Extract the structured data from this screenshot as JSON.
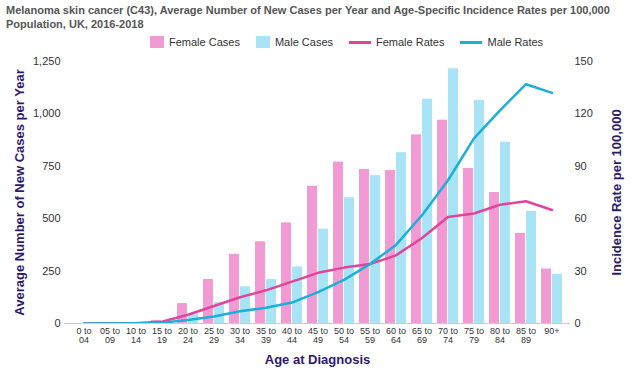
{
  "chart_data": {
    "type": "bar",
    "title": "Melanoma skin cancer (C43), Average Number of New Cases per Year and Age-Specific Incidence Rates per 100,000 Population, UK, 2016-2018",
    "x_label": "Age at Diagnosis",
    "y_label": "Average Number of New Cases per Year",
    "y2_label": "Incidence Rate per 100,000",
    "categories": [
      "0 to 04",
      "05 to 09",
      "10 to 14",
      "15 to 19",
      "20 to 24",
      "25 to 29",
      "30 to 34",
      "35 to 39",
      "40 to 44",
      "45 to 49",
      "50 to 54",
      "55 to 59",
      "60 to 64",
      "65 to 69",
      "70 to 74",
      "75 to 79",
      "80 to 84",
      "85 to 89",
      "90+"
    ],
    "series": [
      {
        "name": "Female Cases",
        "type": "bar",
        "color": "#f29ad3",
        "values": [
          0,
          0,
          2,
          15,
          95,
          210,
          330,
          390,
          480,
          655,
          770,
          735,
          730,
          900,
          970,
          740,
          625,
          430,
          260
        ]
      },
      {
        "name": "Male Cases",
        "type": "bar",
        "color": "#a8e4f5",
        "values": [
          0,
          0,
          2,
          10,
          45,
          100,
          175,
          210,
          270,
          450,
          600,
          705,
          815,
          1070,
          1215,
          1065,
          865,
          535,
          235
        ]
      },
      {
        "name": "Female Rates",
        "type": "line",
        "axis": "y2",
        "color": "#e0459b",
        "values": [
          0,
          0,
          0.2,
          1,
          5,
          10,
          15,
          19,
          24,
          29,
          32,
          34,
          39,
          49,
          61,
          63,
          68,
          70,
          65
        ]
      },
      {
        "name": "Male Rates",
        "type": "line",
        "axis": "y2",
        "color": "#1ab0d8",
        "values": [
          0,
          0,
          0.2,
          0.5,
          2,
          4,
          7,
          9,
          12,
          18,
          25,
          34,
          45,
          62,
          82,
          106,
          122,
          137,
          132
        ]
      }
    ],
    "ylim": [
      0,
      1250
    ],
    "yticks": [
      0,
      250,
      500,
      750,
      {
        "value": 1000,
        "label": "1,000"
      },
      {
        "value": 1250,
        "label": "1,250"
      }
    ],
    "y2lim": [
      0,
      150
    ],
    "y2ticks": [
      0,
      30,
      60,
      90,
      120,
      150
    ],
    "grid": false,
    "legend": "top"
  }
}
